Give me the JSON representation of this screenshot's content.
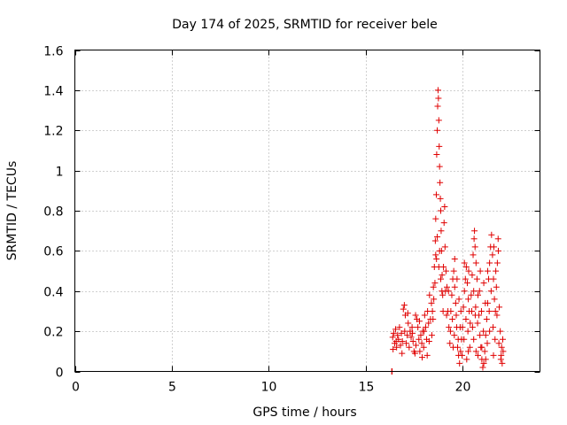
{
  "chart_data": {
    "type": "scatter",
    "title": "Day 174 of 2025, SRMTID for receiver bele",
    "xlabel": "GPS time / hours",
    "ylabel": "SRMTID / TECUs",
    "xlim": [
      0,
      24
    ],
    "ylim": [
      0,
      1.6
    ],
    "xticks": [
      0,
      5,
      10,
      15,
      20
    ],
    "xtick_labels": [
      "0",
      "5",
      "10",
      "15",
      "20"
    ],
    "yticks": [
      0,
      0.2,
      0.4,
      0.6,
      0.8,
      1.0,
      1.2,
      1.4,
      1.6
    ],
    "ytick_labels": [
      "0",
      "0.2",
      "0.4",
      "0.6",
      "0.8",
      "1",
      "1.2",
      "1.4",
      "1.6"
    ],
    "grid": true,
    "marker": "plus",
    "color": "#e00000",
    "series": [
      {
        "name": "SRMTID",
        "points": [
          [
            16.35,
            0.0
          ],
          [
            16.37,
            0.0
          ],
          [
            16.4,
            0.17
          ],
          [
            16.45,
            0.19
          ],
          [
            16.5,
            0.14
          ],
          [
            16.55,
            0.21
          ],
          [
            16.6,
            0.12
          ],
          [
            16.65,
            0.18
          ],
          [
            16.7,
            0.16
          ],
          [
            16.75,
            0.22
          ],
          [
            16.8,
            0.13
          ],
          [
            16.85,
            0.19
          ],
          [
            16.9,
            0.15
          ],
          [
            16.95,
            0.31
          ],
          [
            17.0,
            0.33
          ],
          [
            17.05,
            0.28
          ],
          [
            17.1,
            0.14
          ],
          [
            17.15,
            0.18
          ],
          [
            17.2,
            0.24
          ],
          [
            17.25,
            0.12
          ],
          [
            17.3,
            0.2
          ],
          [
            17.35,
            0.17
          ],
          [
            17.4,
            0.22
          ],
          [
            17.45,
            0.15
          ],
          [
            17.5,
            0.1
          ],
          [
            17.55,
            0.09
          ],
          [
            17.6,
            0.13
          ],
          [
            17.65,
            0.26
          ],
          [
            17.7,
            0.22
          ],
          [
            17.75,
            0.16
          ],
          [
            17.8,
            0.1
          ],
          [
            17.85,
            0.18
          ],
          [
            17.9,
            0.14
          ],
          [
            17.95,
            0.2
          ],
          [
            18.0,
            0.12
          ],
          [
            18.05,
            0.28
          ],
          [
            18.1,
            0.22
          ],
          [
            18.15,
            0.16
          ],
          [
            18.2,
            0.3
          ],
          [
            18.25,
            0.24
          ],
          [
            18.3,
            0.38
          ],
          [
            18.35,
            0.26
          ],
          [
            18.4,
            0.34
          ],
          [
            18.45,
            0.3
          ],
          [
            18.5,
            0.42
          ],
          [
            18.55,
            0.52
          ],
          [
            18.6,
            0.65
          ],
          [
            18.62,
            0.76
          ],
          [
            18.65,
            0.88
          ],
          [
            18.67,
            1.08
          ],
          [
            18.7,
            1.2
          ],
          [
            18.72,
            1.32
          ],
          [
            18.74,
            1.4
          ],
          [
            18.76,
            1.36
          ],
          [
            18.78,
            1.25
          ],
          [
            18.8,
            1.12
          ],
          [
            18.82,
            1.02
          ],
          [
            18.84,
            0.94
          ],
          [
            18.86,
            0.86
          ],
          [
            18.88,
            0.8
          ],
          [
            18.9,
            0.7
          ],
          [
            18.92,
            0.6
          ],
          [
            18.95,
            0.48
          ],
          [
            18.98,
            0.38
          ],
          [
            19.0,
            0.3
          ],
          [
            19.05,
            0.74
          ],
          [
            19.08,
            0.82
          ],
          [
            19.1,
            0.62
          ],
          [
            19.15,
            0.5
          ],
          [
            19.2,
            0.42
          ],
          [
            19.25,
            0.3
          ],
          [
            19.3,
            0.22
          ],
          [
            19.35,
            0.14
          ],
          [
            19.4,
            0.3
          ],
          [
            19.45,
            0.38
          ],
          [
            19.5,
            0.46
          ],
          [
            19.55,
            0.5
          ],
          [
            19.6,
            0.42
          ],
          [
            19.65,
            0.34
          ],
          [
            19.7,
            0.22
          ],
          [
            19.75,
            0.12
          ],
          [
            19.8,
            0.08
          ],
          [
            19.85,
            0.04
          ],
          [
            19.9,
            0.1
          ],
          [
            19.95,
            0.16
          ],
          [
            20.0,
            0.22
          ],
          [
            20.05,
            0.32
          ],
          [
            20.1,
            0.4
          ],
          [
            20.15,
            0.46
          ],
          [
            20.2,
            0.52
          ],
          [
            20.25,
            0.44
          ],
          [
            20.3,
            0.36
          ],
          [
            20.35,
            0.3
          ],
          [
            20.4,
            0.24
          ],
          [
            20.45,
            0.38
          ],
          [
            20.5,
            0.48
          ],
          [
            20.55,
            0.58
          ],
          [
            20.6,
            0.66
          ],
          [
            20.62,
            0.7
          ],
          [
            20.65,
            0.62
          ],
          [
            20.7,
            0.54
          ],
          [
            20.75,
            0.46
          ],
          [
            20.8,
            0.38
          ],
          [
            20.85,
            0.28
          ],
          [
            20.9,
            0.18
          ],
          [
            20.95,
            0.12
          ],
          [
            21.0,
            0.06
          ],
          [
            21.05,
            0.02
          ],
          [
            21.1,
            0.04
          ],
          [
            21.15,
            0.1
          ],
          [
            21.2,
            0.18
          ],
          [
            21.25,
            0.26
          ],
          [
            21.3,
            0.34
          ],
          [
            21.35,
            0.46
          ],
          [
            21.4,
            0.54
          ],
          [
            21.45,
            0.62
          ],
          [
            21.5,
            0.68
          ],
          [
            21.55,
            0.58
          ],
          [
            21.6,
            0.46
          ],
          [
            21.65,
            0.36
          ],
          [
            21.7,
            0.3
          ],
          [
            21.75,
            0.42
          ],
          [
            21.8,
            0.54
          ],
          [
            21.85,
            0.6
          ],
          [
            21.9,
            0.32
          ],
          [
            21.95,
            0.2
          ],
          [
            22.0,
            0.08
          ],
          [
            22.05,
            0.04
          ],
          [
            22.1,
            0.1
          ],
          [
            16.42,
            0.11
          ],
          [
            16.58,
            0.15
          ],
          [
            16.88,
            0.09
          ],
          [
            17.02,
            0.2
          ],
          [
            17.18,
            0.29
          ],
          [
            17.42,
            0.19
          ],
          [
            17.58,
            0.28
          ],
          [
            17.78,
            0.25
          ],
          [
            17.92,
            0.07
          ],
          [
            18.02,
            0.2
          ],
          [
            18.18,
            0.08
          ],
          [
            18.28,
            0.15
          ],
          [
            18.42,
            0.18
          ],
          [
            18.48,
            0.26
          ],
          [
            18.52,
            0.36
          ],
          [
            18.58,
            0.44
          ],
          [
            18.62,
            0.58
          ],
          [
            18.66,
            0.56
          ],
          [
            18.7,
            0.67
          ],
          [
            18.78,
            0.52
          ],
          [
            18.82,
            0.6
          ],
          [
            18.88,
            0.46
          ],
          [
            18.94,
            0.4
          ],
          [
            19.02,
            0.52
          ],
          [
            19.12,
            0.4
          ],
          [
            19.18,
            0.28
          ],
          [
            19.28,
            0.4
          ],
          [
            19.38,
            0.2
          ],
          [
            19.48,
            0.26
          ],
          [
            19.58,
            0.18
          ],
          [
            19.68,
            0.28
          ],
          [
            19.78,
            0.16
          ],
          [
            19.88,
            0.22
          ],
          [
            19.98,
            0.08
          ],
          [
            20.08,
            0.16
          ],
          [
            20.18,
            0.26
          ],
          [
            20.28,
            0.2
          ],
          [
            20.38,
            0.12
          ],
          [
            20.48,
            0.3
          ],
          [
            20.58,
            0.4
          ],
          [
            20.68,
            0.32
          ],
          [
            20.78,
            0.24
          ],
          [
            20.88,
            0.4
          ],
          [
            20.98,
            0.3
          ],
          [
            21.08,
            0.2
          ],
          [
            21.18,
            0.34
          ],
          [
            21.28,
            0.14
          ],
          [
            21.38,
            0.3
          ],
          [
            21.48,
            0.4
          ],
          [
            21.58,
            0.22
          ],
          [
            21.68,
            0.16
          ],
          [
            21.78,
            0.28
          ],
          [
            21.88,
            0.14
          ],
          [
            21.98,
            0.06
          ],
          [
            22.02,
            0.12
          ],
          [
            22.08,
            0.16
          ],
          [
            20.7,
            0.1
          ],
          [
            20.8,
            0.08
          ],
          [
            21.0,
            0.12
          ],
          [
            21.2,
            0.06
          ],
          [
            21.4,
            0.2
          ],
          [
            21.6,
            0.08
          ],
          [
            20.22,
            0.06
          ],
          [
            20.3,
            0.1
          ],
          [
            19.6,
            0.56
          ],
          [
            19.72,
            0.46
          ],
          [
            19.82,
            0.36
          ],
          [
            20.1,
            0.54
          ],
          [
            20.32,
            0.5
          ],
          [
            20.52,
            0.22
          ],
          [
            20.92,
            0.5
          ],
          [
            21.1,
            0.44
          ],
          [
            21.3,
            0.5
          ],
          [
            21.62,
            0.62
          ],
          [
            21.72,
            0.5
          ],
          [
            21.84,
            0.66
          ],
          [
            20.58,
            0.16
          ],
          [
            20.66,
            0.28
          ],
          [
            19.92,
            0.3
          ],
          [
            19.52,
            0.12
          ]
        ]
      }
    ]
  }
}
